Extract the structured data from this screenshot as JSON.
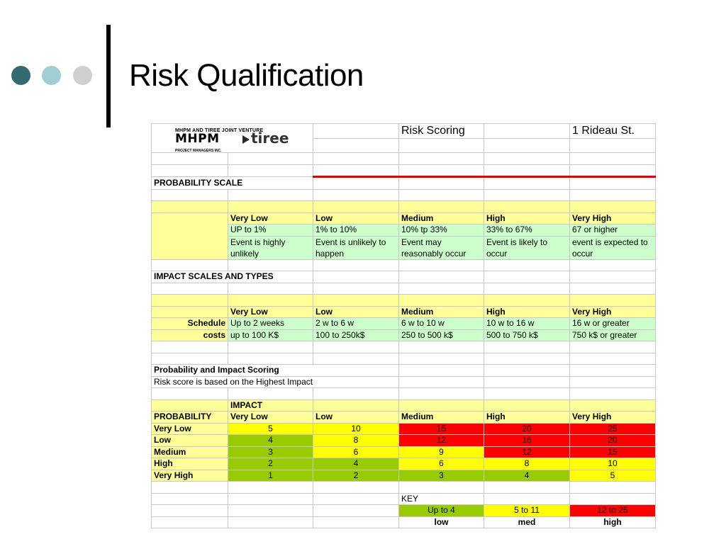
{
  "slide": {
    "title": "Risk Qualification"
  },
  "header": {
    "logo_top": "MHPM AND TIREE JOINT VENTURE",
    "logo_mhpm": "MHPM",
    "logo_pm": "PROJECT MANAGERS INC.",
    "logo_tiree": "tiree",
    "doc_title": "Risk Scoring",
    "address": "1 Rideau St."
  },
  "probability_scale": {
    "heading": "PROBABILITY SCALE",
    "levels": [
      "Very Low",
      "Low",
      "Medium",
      "High",
      "Very High"
    ],
    "ranges": [
      "UP to 1%",
      "1% to 10%",
      "10% tp 33%",
      "33% to 67%",
      "67 or higher"
    ],
    "descriptions": [
      "Event is highly unlikely",
      "Event is unlikely to happen",
      "Event may reasonably occur",
      "Event is likely to occur",
      "event is expected to occur"
    ]
  },
  "impact_scales": {
    "heading": "IMPACT SCALES AND TYPES",
    "levels": [
      "Very Low",
      "Low",
      "Medium",
      "High",
      "Very High"
    ],
    "schedule_label": "Schedule",
    "schedule": [
      "Up to 2 weeks",
      "2 w to 6 w",
      "6 w to 10 w",
      "10 w to 16 w",
      "16 w or greater"
    ],
    "costs_label": "costs",
    "costs": [
      "up to 100 K$",
      " 100 to 250k$",
      "250 to 500 k$",
      "500 to 750 k$",
      "750 k$ or greater"
    ]
  },
  "scoring": {
    "heading": "Probability and Impact Scoring",
    "note": "Risk score is based on the Highest Impact",
    "impact_label": "IMPACT",
    "probability_label": "PROBABILITY",
    "impact_levels": [
      "Very Low",
      "Low",
      "Medium",
      "High",
      "Very High"
    ],
    "rows": [
      {
        "label": "Very Low",
        "values": [
          "5",
          "10",
          "15",
          "20",
          "25"
        ]
      },
      {
        "label": "Low",
        "values": [
          "4",
          "8",
          "12",
          "16",
          "20"
        ]
      },
      {
        "label": "Medium",
        "values": [
          "3",
          "6",
          "9",
          "12",
          "15"
        ]
      },
      {
        "label": "High",
        "values": [
          "2",
          "4",
          "6",
          "8",
          "10"
        ]
      },
      {
        "label": "Very High",
        "values": [
          "1",
          "2",
          "3",
          "4",
          "5"
        ]
      }
    ]
  },
  "key": {
    "label": "KEY",
    "ranges": [
      "Up to 4",
      "5 to 11",
      "12 to 25"
    ],
    "names": [
      "low",
      "med",
      "high"
    ]
  },
  "colors": {
    "low": "#99cc00",
    "med": "#ffff00",
    "high": "#ff0000",
    "header_yellow": "#ffff99",
    "range_green": "#ccffcc"
  }
}
